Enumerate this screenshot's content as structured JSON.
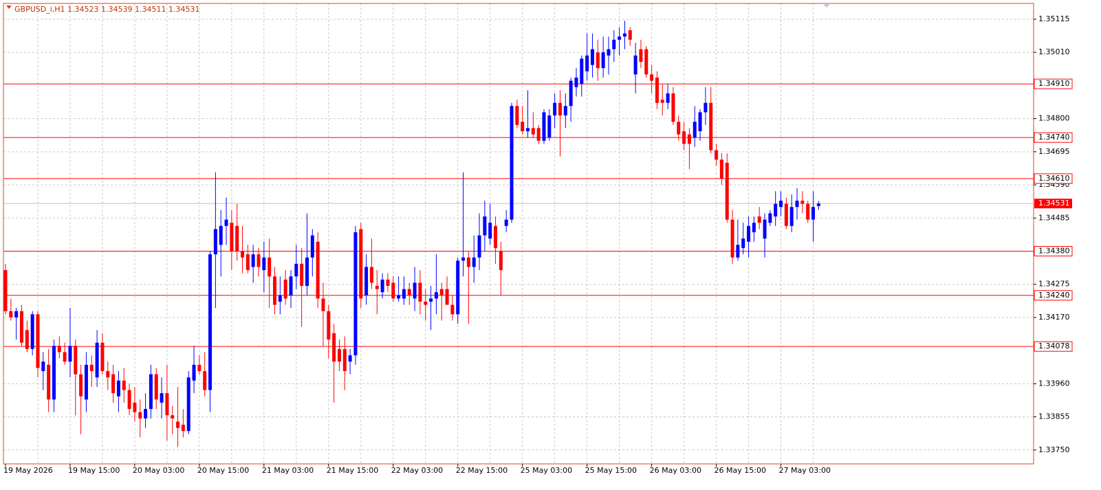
{
  "chart_data": {
    "type": "candlestick",
    "title": "GBPUSD_i,H1  1.34523 1.34539 1.34511 1.34531",
    "categories": [
      "19 May 2026",
      null,
      null,
      null,
      null,
      null,
      null,
      null,
      null,
      null,
      null,
      null,
      "19 May 15:00",
      null,
      null,
      null,
      null,
      null,
      null,
      null,
      null,
      null,
      null,
      null,
      "20 May 03:00",
      null,
      null,
      null,
      null,
      null,
      null,
      null,
      null,
      null,
      null,
      null,
      "20 May 15:00",
      null,
      null,
      null,
      null,
      null,
      null,
      null,
      null,
      null,
      null,
      null,
      "21 May 03:00",
      null,
      null,
      null,
      null,
      null,
      null,
      null,
      null,
      null,
      null,
      null,
      "21 May 15:00",
      null,
      null,
      null,
      null,
      null,
      null,
      null,
      null,
      null,
      null,
      null,
      "22 May 03:00",
      null,
      null,
      null,
      null,
      null,
      null,
      null,
      null,
      null,
      null,
      null,
      "22 May 15:00",
      null,
      null,
      null,
      null,
      null,
      null,
      null,
      null,
      null,
      null,
      null,
      "25 May 03:00",
      null,
      null,
      null,
      null,
      null,
      null,
      null,
      null,
      null,
      null,
      null,
      "25 May 15:00",
      null,
      null,
      null,
      null,
      null,
      null,
      null,
      null,
      null,
      null,
      null,
      "26 May 03:00",
      null,
      null,
      null,
      null,
      null,
      null,
      null,
      null,
      null,
      null,
      null,
      "26 May 15:00",
      null,
      null,
      null,
      null,
      null,
      null,
      null,
      null,
      null,
      null,
      null,
      "27 May 03:00",
      null,
      null,
      null,
      null,
      null,
      null,
      null
    ],
    "open": [
      1.3432,
      1.3419,
      1.3417,
      1.3419,
      1.3413,
      1.3407,
      1.3418,
      1.34,
      1.3402,
      1.3391,
      1.3408,
      1.3406,
      1.3403,
      1.3408,
      1.3399,
      1.3391,
      1.3402,
      1.3398,
      1.3409,
      1.34,
      1.3399,
      1.3392,
      1.3397,
      1.3394,
      1.339,
      1.3387,
      1.3385,
      1.3388,
      1.3399,
      1.339,
      1.3393,
      1.3386,
      1.3384,
      1.3383,
      1.3381,
      1.3397,
      1.3402,
      1.34,
      1.3394,
      1.3437,
      1.344,
      1.3446,
      1.3447,
      1.3446,
      1.3438,
      1.3437,
      1.3433,
      1.3437,
      1.3432,
      1.3436,
      1.343,
      1.3422,
      1.3429,
      1.3424,
      1.343,
      1.3434,
      1.3427,
      1.3436,
      1.3441,
      1.3423,
      1.3419,
      1.3412,
      1.3407,
      1.3407,
      1.3403,
      1.3405,
      1.3445,
      1.3424,
      1.3433,
      1.3427,
      1.3425,
      1.3429,
      1.3428,
      1.3423,
      1.3423,
      1.3426,
      1.3423,
      1.3428,
      1.3422,
      1.3422,
      1.3423,
      1.3426,
      1.3426,
      1.3421,
      1.3418,
      1.3435,
      1.3436,
      1.3433,
      1.3436,
      1.3443,
      1.3442,
      1.3446,
      1.3438,
      1.3446,
      1.3448,
      1.3484,
      1.3479,
      1.3476,
      1.3477,
      1.3477,
      1.3473,
      1.3474,
      1.3481,
      1.3485,
      1.3481,
      1.3484,
      1.349,
      1.3491,
      1.3495,
      1.3497,
      1.3501,
      1.3496,
      1.35,
      1.3502,
      1.3505,
      1.3506,
      1.3508,
      1.3494,
      1.3502,
      1.3502,
      1.3494,
      1.3493,
      1.3486,
      1.3485,
      1.3488,
      1.3479,
      1.3476,
      1.3475,
      1.3474,
      1.3476,
      1.3482,
      1.3485,
      1.347,
      1.3467,
      1.3466,
      1.3448,
      1.3436,
      1.3439,
      1.3441,
      1.3444,
      1.3449,
      1.3442,
      1.3447,
      1.3449,
      1.3452,
      1.3453,
      1.3446,
      1.3452,
      1.3454,
      1.3453,
      1.3448,
      1.34523
    ],
    "high": [
      1.3434,
      1.3423,
      1.342,
      1.3421,
      1.3416,
      1.3419,
      1.3419,
      1.3406,
      1.3407,
      1.341,
      1.3411,
      1.3409,
      1.342,
      1.341,
      1.3402,
      1.3406,
      1.3405,
      1.3413,
      1.3412,
      1.3403,
      1.3402,
      1.34,
      1.3401,
      1.3396,
      1.3395,
      1.3391,
      1.3393,
      1.3402,
      1.3401,
      1.3398,
      1.3402,
      1.3389,
      1.3395,
      1.3388,
      1.34,
      1.3408,
      1.3405,
      1.3406,
      1.3438,
      1.3463,
      1.3451,
      1.3455,
      1.3451,
      1.3453,
      1.3446,
      1.344,
      1.344,
      1.3439,
      1.3441,
      1.3442,
      1.3433,
      1.343,
      1.3432,
      1.3432,
      1.344,
      1.3439,
      1.345,
      1.3445,
      1.3444,
      1.3428,
      1.3421,
      1.3415,
      1.341,
      1.3411,
      1.3407,
      1.3446,
      1.3447,
      1.3437,
      1.3442,
      1.3432,
      1.3431,
      1.3431,
      1.343,
      1.343,
      1.343,
      1.3428,
      1.3433,
      1.3432,
      1.3426,
      1.3427,
      1.3437,
      1.3428,
      1.343,
      1.3424,
      1.3436,
      1.3463,
      1.3438,
      1.3443,
      1.345,
      1.3454,
      1.3453,
      1.3449,
      1.3441,
      1.3451,
      1.3485,
      1.3486,
      1.3484,
      1.3489,
      1.3482,
      1.3478,
      1.3483,
      1.3483,
      1.3488,
      1.3489,
      1.3488,
      1.3493,
      1.3496,
      1.35,
      1.3507,
      1.3507,
      1.3505,
      1.3506,
      1.3506,
      1.3508,
      1.3509,
      1.3511,
      1.3509,
      1.3504,
      1.3505,
      1.3503,
      1.3497,
      1.3495,
      1.3491,
      1.3491,
      1.349,
      1.3481,
      1.3479,
      1.3477,
      1.3484,
      1.3483,
      1.349,
      1.349,
      1.3472,
      1.3469,
      1.3469,
      1.3451,
      1.3448,
      1.3447,
      1.3449,
      1.3449,
      1.3452,
      1.345,
      1.3451,
      1.3457,
      1.3457,
      1.3455,
      1.3456,
      1.3458,
      1.3457,
      1.3454,
      1.3457,
      1.34539
    ],
    "low": [
      1.3418,
      1.3416,
      1.341,
      1.3408,
      1.3406,
      1.3405,
      1.3398,
      1.3394,
      1.3387,
      1.3387,
      1.3404,
      1.3402,
      1.3398,
      1.3386,
      1.338,
      1.3387,
      1.3395,
      1.3395,
      1.3399,
      1.3394,
      1.339,
      1.3387,
      1.339,
      1.3386,
      1.3384,
      1.3379,
      1.3382,
      1.3385,
      1.3388,
      1.3385,
      1.3378,
      1.338,
      1.3376,
      1.3379,
      1.338,
      1.3393,
      1.3399,
      1.3392,
      1.3387,
      1.342,
      1.343,
      1.344,
      1.3432,
      1.3435,
      1.3431,
      1.3431,
      1.3428,
      1.343,
      1.3425,
      1.342,
      1.3418,
      1.3418,
      1.3421,
      1.342,
      1.3426,
      1.3414,
      1.3424,
      1.343,
      1.342,
      1.3408,
      1.3404,
      1.339,
      1.34,
      1.3394,
      1.3399,
      1.3402,
      1.342,
      1.3421,
      1.3426,
      1.3418,
      1.3423,
      1.3425,
      1.3422,
      1.3422,
      1.3421,
      1.3421,
      1.3419,
      1.3418,
      1.3416,
      1.3413,
      1.3418,
      1.3416,
      1.3421,
      1.3416,
      1.3415,
      1.343,
      1.3415,
      1.3428,
      1.3432,
      1.3438,
      1.344,
      1.3434,
      1.3424,
      1.3444,
      1.3447,
      1.3477,
      1.3475,
      1.3474,
      1.3474,
      1.3472,
      1.3472,
      1.3473,
      1.3477,
      1.3468,
      1.3477,
      1.3479,
      1.3487,
      1.3487,
      1.3492,
      1.3493,
      1.3492,
      1.3493,
      1.3494,
      1.3498,
      1.35,
      1.3502,
      1.3503,
      1.3488,
      1.3496,
      1.3493,
      1.3488,
      1.3483,
      1.3481,
      1.3483,
      1.3478,
      1.3473,
      1.347,
      1.3464,
      1.3471,
      1.3473,
      1.3478,
      1.3469,
      1.3465,
      1.3459,
      1.3447,
      1.3434,
      1.3435,
      1.3437,
      1.3436,
      1.3441,
      1.3445,
      1.3436,
      1.3446,
      1.3446,
      1.3449,
      1.3445,
      1.3444,
      1.3448,
      1.345,
      1.3447,
      1.3441,
      1.34511
    ],
    "close": [
      1.3419,
      1.3417,
      1.3419,
      1.3409,
      1.3407,
      1.3418,
      1.3401,
      1.3403,
      1.3391,
      1.3408,
      1.3406,
      1.3403,
      1.3408,
      1.3399,
      1.3392,
      1.3402,
      1.34,
      1.3409,
      1.34,
      1.3398,
      1.3393,
      1.3397,
      1.3394,
      1.3388,
      1.3387,
      1.3385,
      1.3388,
      1.3399,
      1.3391,
      1.3393,
      1.3386,
      1.3385,
      1.3382,
      1.3381,
      1.3398,
      1.3402,
      1.34,
      1.3394,
      1.3437,
      1.3445,
      1.3446,
      1.3448,
      1.3438,
      1.3438,
      1.3436,
      1.3432,
      1.3437,
      1.3433,
      1.3436,
      1.343,
      1.3421,
      1.3424,
      1.3423,
      1.343,
      1.3434,
      1.3427,
      1.3436,
      1.3443,
      1.3423,
      1.3419,
      1.341,
      1.3403,
      1.3403,
      1.34,
      1.3405,
      1.3444,
      1.3423,
      1.3433,
      1.3428,
      1.3426,
      1.3429,
      1.3427,
      1.3423,
      1.3424,
      1.3426,
      1.3424,
      1.3428,
      1.3422,
      1.3421,
      1.3423,
      1.3425,
      1.3424,
      1.3421,
      1.3418,
      1.3435,
      1.3436,
      1.3433,
      1.3436,
      1.3443,
      1.3449,
      1.3447,
      1.3439,
      1.3432,
      1.3448,
      1.3484,
      1.3478,
      1.3476,
      1.3477,
      1.3475,
      1.3473,
      1.3482,
      1.3481,
      1.3485,
      1.3481,
      1.3484,
      1.3492,
      1.3493,
      1.3499,
      1.35,
      1.3502,
      1.3496,
      1.3501,
      1.3502,
      1.3505,
      1.3506,
      1.3507,
      1.3505,
      1.35,
      1.3498,
      1.3494,
      1.3492,
      1.3485,
      1.3485,
      1.3488,
      1.3479,
      1.3475,
      1.3472,
      1.3472,
      1.3479,
      1.3482,
      1.3485,
      1.347,
      1.3467,
      1.3461,
      1.3448,
      1.3436,
      1.344,
      1.3442,
      1.3446,
      1.3447,
      1.3447,
      1.3448,
      1.345,
      1.3453,
      1.3454,
      1.3446,
      1.3452,
      1.3454,
      1.3453,
      1.3448,
      1.3452,
      1.34531
    ],
    "up_color": "#0000ff",
    "down_color": "#ff0000",
    "ylim": [
      1.33706,
      1.35165
    ],
    "yticks": [
      1.35115,
      {
        "value": 1.3501,
        "label": "1.35010"
      },
      {
        "value": 1.348,
        "label": "1.34800"
      },
      1.34695,
      {
        "value": 1.3459,
        "label": "1.34590"
      },
      1.34485,
      1.34275,
      {
        "value": 1.3417,
        "label": "1.34170"
      },
      {
        "value": 1.3396,
        "label": "1.33960"
      },
      1.33855,
      {
        "value": 1.3375,
        "label": "1.33750"
      }
    ],
    "levels": [
      {
        "value": 1.3491,
        "label": "1.34910"
      },
      {
        "value": 1.3474,
        "label": "1.34740"
      },
      {
        "value": 1.3461,
        "label": "1.34610"
      },
      {
        "value": 1.3438,
        "label": "1.34380"
      },
      {
        "value": 1.3424,
        "label": "1.34240"
      },
      1.34078
    ],
    "level_color": "#ff0000",
    "last_price": 1.34531,
    "grid": true
  }
}
